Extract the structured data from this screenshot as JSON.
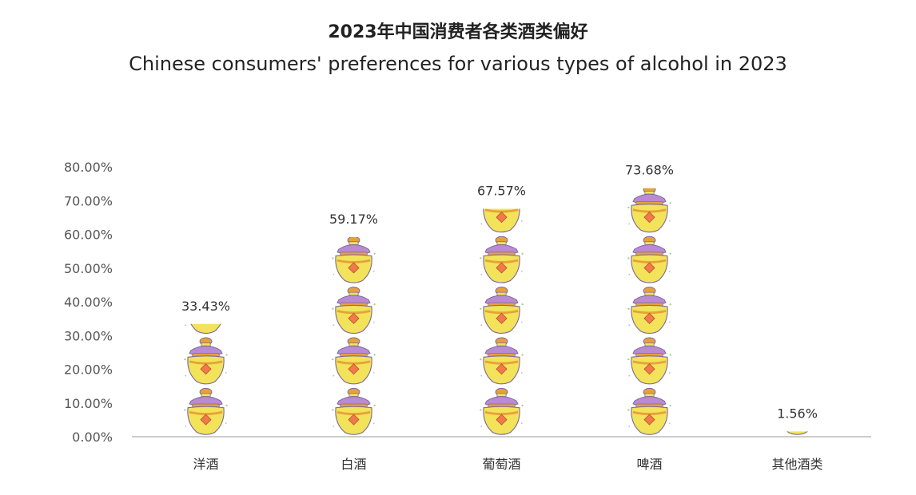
{
  "title": "2023年中国消费者各类酒类偏好",
  "subtitle": "Chinese consumers' preferences for various types of alcohol in 2023",
  "chart_data": {
    "type": "bar",
    "title": "2023年中国消费者各类酒类偏好",
    "subtitle": "Chinese consumers' preferences for various types of alcohol in 2023",
    "categories": [
      "洋酒",
      "白酒",
      "葡萄酒",
      "啤酒",
      "其他酒类"
    ],
    "values": [
      33.43,
      59.17,
      67.57,
      73.68,
      1.56
    ],
    "data_labels": [
      "33.43%",
      "59.17%",
      "67.57%",
      "73.68%",
      "1.56%"
    ],
    "yticks": [
      "0.00%",
      "10.00%",
      "20.00%",
      "30.00%",
      "40.00%",
      "50.00%",
      "60.00%",
      "70.00%",
      "80.00%"
    ],
    "ylim": [
      0,
      80
    ],
    "grid": false,
    "mark_style": "stacked pictogram of golden wine-jar icons",
    "colors": {
      "jar_body": "#f2e35a",
      "jar_band": "#e8a13a",
      "jar_lid": "#b98ad6",
      "diamond": "#f07a4a",
      "axis": "#bbbbbb"
    }
  }
}
